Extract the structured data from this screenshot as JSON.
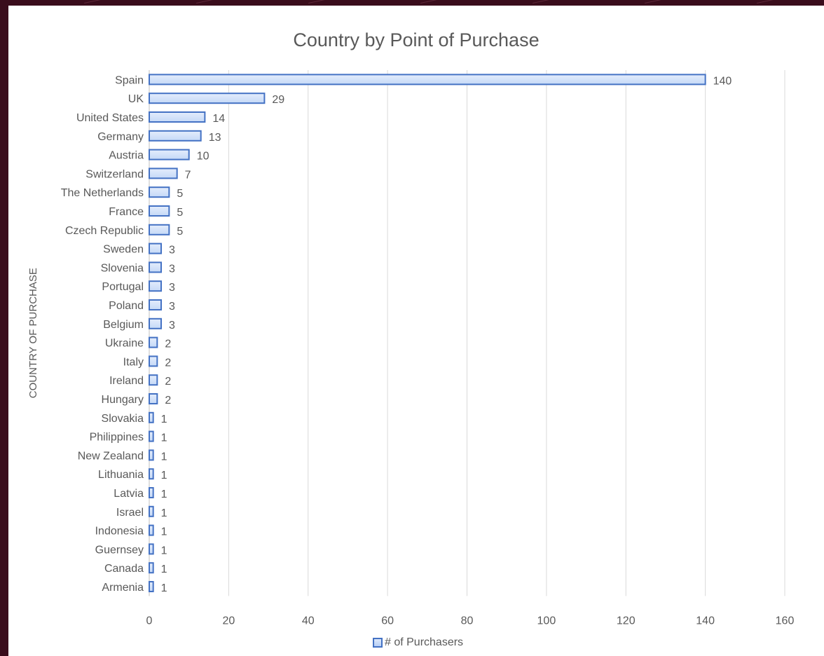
{
  "chart_data": {
    "type": "bar",
    "orientation": "horizontal",
    "title": "Country by Point of Purchase",
    "ylabel": "COUNTRY OF PURCHASE",
    "xlabel": "",
    "xlim": [
      0,
      160
    ],
    "xticks": [
      0,
      20,
      40,
      60,
      80,
      100,
      120,
      140,
      160
    ],
    "grid": true,
    "legend_position": "bottom",
    "series": [
      {
        "name": "# of Purchasers",
        "color": "#4472c4",
        "fill": "#c5d9f7",
        "categories": [
          "Spain",
          "UK",
          "United States",
          "Germany",
          "Austria",
          "Switzerland",
          "The Netherlands",
          "France",
          "Czech Republic",
          "Sweden",
          "Slovenia",
          "Portugal",
          "Poland",
          "Belgium",
          "Ukraine",
          "Italy",
          "Ireland",
          "Hungary",
          "Slovakia",
          "Philippines",
          "New Zealand",
          "Lithuania",
          "Latvia",
          "Israel",
          "Indonesia",
          "Guernsey",
          "Canada",
          "Armenia"
        ],
        "values": [
          140,
          29,
          14,
          13,
          10,
          7,
          5,
          5,
          5,
          3,
          3,
          3,
          3,
          3,
          2,
          2,
          2,
          2,
          1,
          1,
          1,
          1,
          1,
          1,
          1,
          1,
          1,
          1
        ]
      }
    ]
  }
}
